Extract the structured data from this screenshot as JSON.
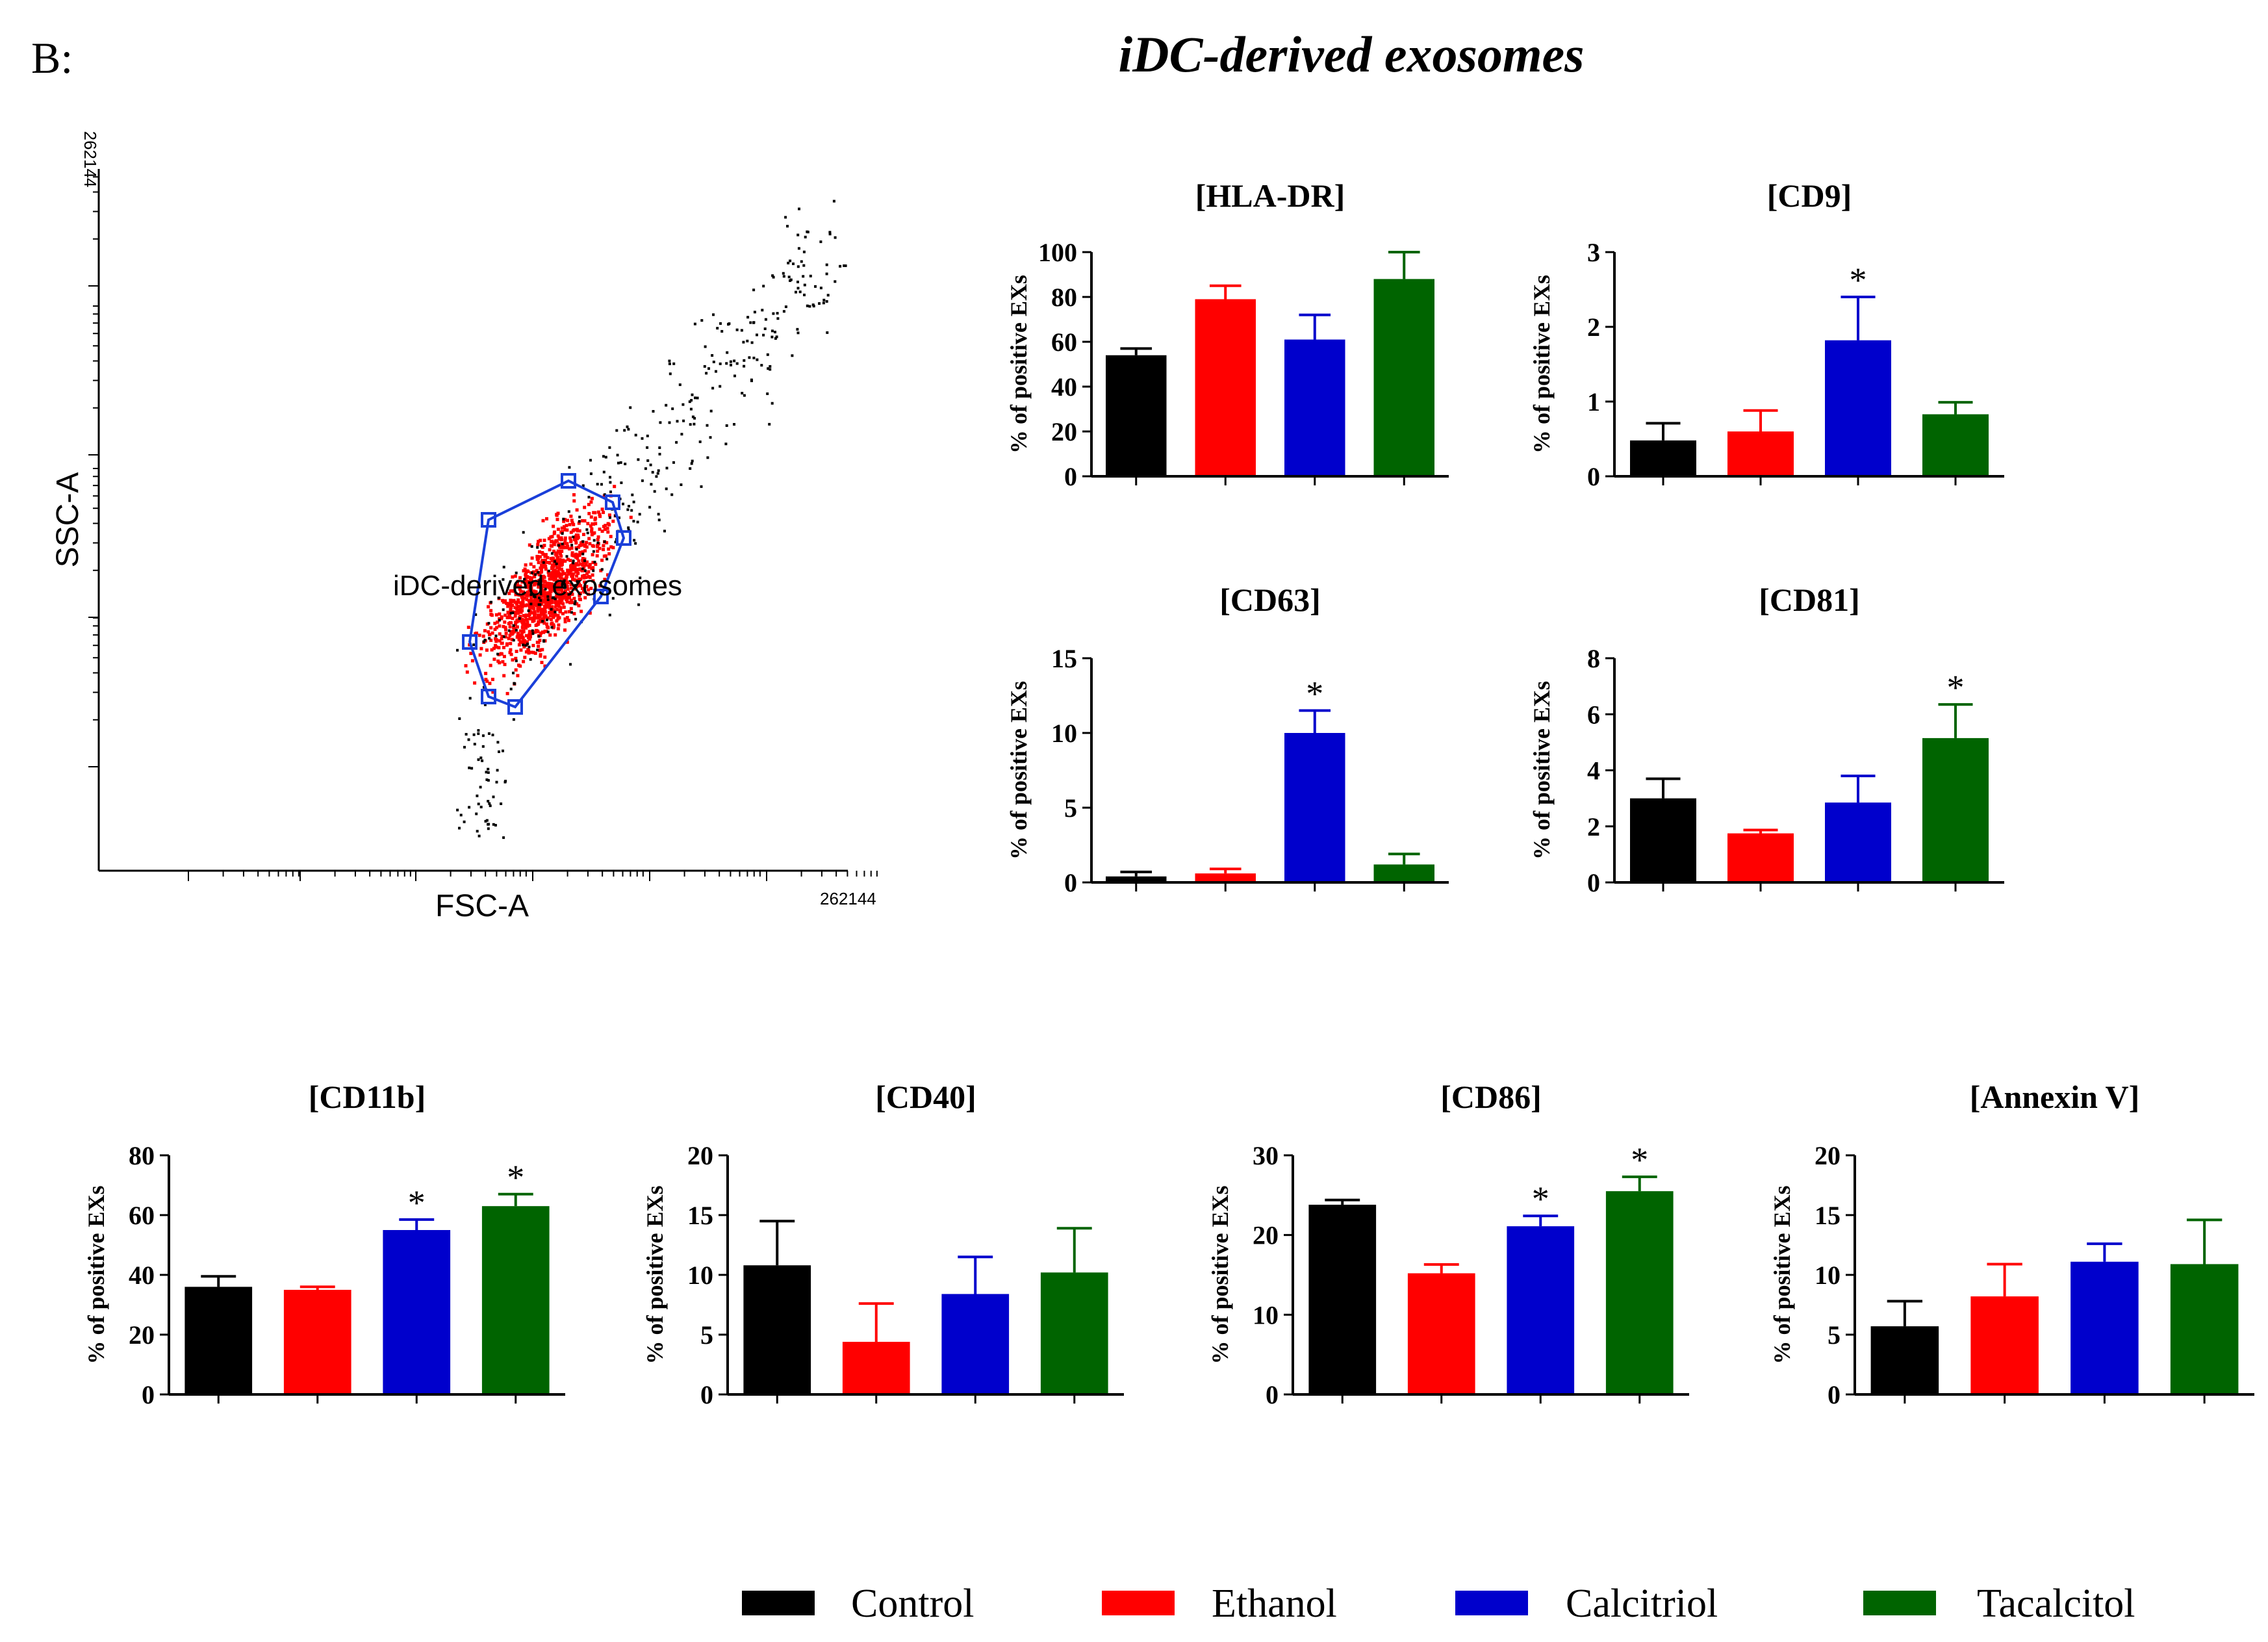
{
  "panel_label": "B:",
  "figure_title": "iDC-derived exosomes",
  "colors": {
    "Control": "#000000",
    "Ethanol": "#ff0000",
    "Calcitriol": "#0000cc",
    "Tacalcitol": "#006400",
    "gate": "#1a3fd9",
    "events": "#ff0000",
    "background": "#ffffff"
  },
  "legend": {
    "entries": [
      "Control",
      "Ethanol",
      "Calcitriol",
      "Tacalcitol"
    ]
  },
  "flow_plot": {
    "x_label": "FSC-A",
    "y_label": "SSC-A",
    "x_max_label": "262144",
    "y_max_label": "262144",
    "gate_label": "iDC-derived exosomes",
    "scale": "log"
  },
  "chart_data": [
    {
      "type": "bar",
      "title": "[HLA-DR]",
      "ylabel": "% of positive EXs",
      "categories": [
        "Control",
        "Ethanol",
        "Calcitriol",
        "Tacalcitol"
      ],
      "values": [
        54,
        79,
        61,
        88
      ],
      "errors": [
        3,
        6,
        11,
        12
      ],
      "significant": [
        false,
        false,
        false,
        false
      ],
      "ylim": [
        0,
        100
      ],
      "yticks": [
        0,
        20,
        40,
        60,
        80,
        100
      ]
    },
    {
      "type": "bar",
      "title": "[CD9]",
      "ylabel": "% of positive EXs",
      "categories": [
        "Control",
        "Ethanol",
        "Calcitriol",
        "Tacalcitol"
      ],
      "values": [
        0.48,
        0.6,
        1.82,
        0.83
      ],
      "errors": [
        0.23,
        0.28,
        0.58,
        0.16
      ],
      "significant": [
        false,
        false,
        true,
        false
      ],
      "ylim": [
        0,
        3
      ],
      "yticks": [
        0,
        1,
        2,
        3
      ]
    },
    {
      "type": "bar",
      "title": "[CD63]",
      "ylabel": "% of positive EXs",
      "categories": [
        "Control",
        "Ethanol",
        "Calcitriol",
        "Tacalcitol"
      ],
      "values": [
        0.4,
        0.6,
        10,
        1.2
      ],
      "errors": [
        0.3,
        0.3,
        1.5,
        0.7
      ],
      "significant": [
        false,
        false,
        true,
        false
      ],
      "ylim": [
        0,
        15
      ],
      "yticks": [
        0,
        5,
        10,
        15
      ]
    },
    {
      "type": "bar",
      "title": "[CD81]",
      "ylabel": "% of positive EXs",
      "categories": [
        "Control",
        "Ethanol",
        "Calcitriol",
        "Tacalcitol"
      ],
      "values": [
        3.0,
        1.75,
        2.85,
        5.15
      ],
      "errors": [
        0.7,
        0.12,
        0.95,
        1.2
      ],
      "significant": [
        false,
        false,
        false,
        true
      ],
      "ylim": [
        0,
        8
      ],
      "yticks": [
        0,
        2,
        4,
        6,
        8
      ]
    },
    {
      "type": "bar",
      "title": "[CD11b]",
      "ylabel": "% of positive EXs",
      "categories": [
        "Control",
        "Ethanol",
        "Calcitriol",
        "Tacalcitol"
      ],
      "values": [
        36,
        35,
        55,
        63
      ],
      "errors": [
        3.5,
        1,
        3.5,
        4
      ],
      "significant": [
        false,
        false,
        true,
        true
      ],
      "ylim": [
        0,
        80
      ],
      "yticks": [
        0,
        20,
        40,
        60,
        80
      ]
    },
    {
      "type": "bar",
      "title": "[CD40]",
      "ylabel": "% of positive EXs",
      "categories": [
        "Control",
        "Ethanol",
        "Calcitriol",
        "Tacalcitol"
      ],
      "values": [
        10.8,
        4.4,
        8.4,
        10.2
      ],
      "errors": [
        3.7,
        3.2,
        3.1,
        3.7
      ],
      "significant": [
        false,
        false,
        false,
        false
      ],
      "ylim": [
        0,
        20
      ],
      "yticks": [
        0,
        5,
        10,
        15,
        20
      ]
    },
    {
      "type": "bar",
      "title": "[CD86]",
      "ylabel": "% of positive EXs",
      "categories": [
        "Control",
        "Ethanol",
        "Calcitriol",
        "Tacalcitol"
      ],
      "values": [
        23.8,
        15.2,
        21.1,
        25.5
      ],
      "errors": [
        0.6,
        1.1,
        1.3,
        1.8
      ],
      "significant": [
        false,
        false,
        true,
        true
      ],
      "ylim": [
        0,
        30
      ],
      "yticks": [
        0,
        10,
        20,
        30
      ]
    },
    {
      "type": "bar",
      "title": "[Annexin V]",
      "ylabel": "% of positive EXs",
      "categories": [
        "Control",
        "Ethanol",
        "Calcitriol",
        "Tacalcitol"
      ],
      "values": [
        5.7,
        8.2,
        11.1,
        10.9
      ],
      "errors": [
        2.1,
        2.7,
        1.5,
        3.7
      ],
      "significant": [
        false,
        false,
        false,
        false
      ],
      "ylim": [
        0,
        20
      ],
      "yticks": [
        0,
        5,
        10,
        15,
        20
      ]
    }
  ]
}
